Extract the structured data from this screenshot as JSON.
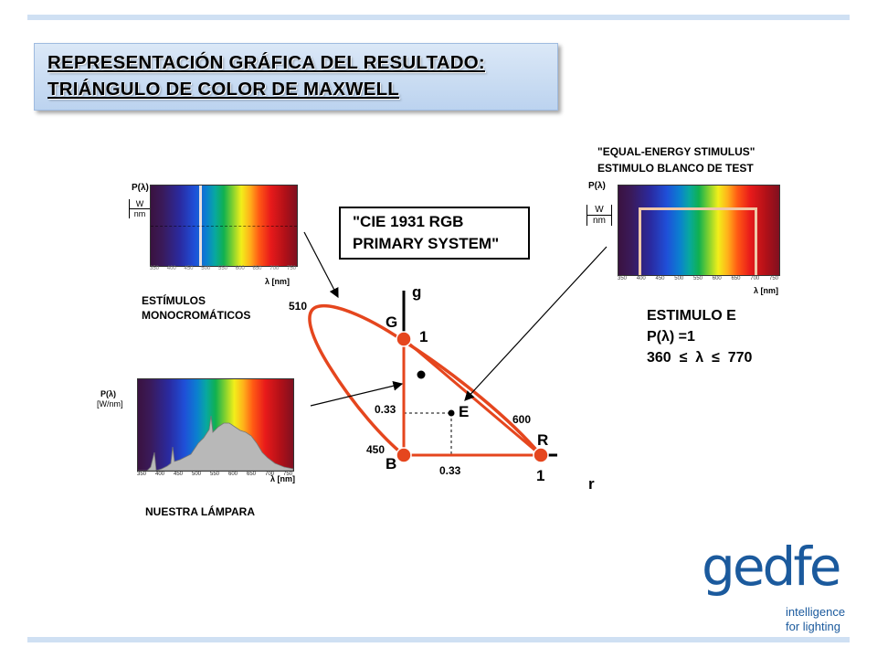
{
  "title": {
    "line1": "REPRESENTACIÓN GRÁFICA DEL RESULTADO:",
    "line2": "TRIÁNGULO DE COLOR DE MAXWELL"
  },
  "callout": {
    "line1": "\"CIE 1931 RGB",
    "line2": "PRIMARY SYSTEM\""
  },
  "monochromatic": {
    "caption_line1": "ESTÍMULOS",
    "caption_line2": "MONOCROMÁTICOS",
    "y_label": "P(λ)",
    "unit_num": "W",
    "unit_den": "nm",
    "x_label": "λ [nm]",
    "ticks": [
      "350",
      "400",
      "450",
      "500",
      "550",
      "600",
      "650",
      "700",
      "750"
    ]
  },
  "equal_energy": {
    "header_line1": "\"EQUAL-ENERGY STIMULUS\"",
    "header_line2": "ESTIMULO BLANCO DE TEST",
    "y_label": "P(λ)",
    "unit_num": "W",
    "unit_den": "nm",
    "x_label": "λ [nm]",
    "ticks": [
      "350",
      "400",
      "450",
      "500",
      "550",
      "600",
      "650",
      "700",
      "750"
    ],
    "stimulus_title": "ESTIMULO E",
    "stimulus_eq": "P(λ) =1",
    "stimulus_range": "360  ≤  λ  ≤  770"
  },
  "lamp": {
    "caption": "NUESTRA LÁMPARA",
    "y_label": "P(λ)",
    "y_unit": "[W/nm]",
    "x_label": "λ [nm]",
    "ticks": [
      "350",
      "400",
      "450",
      "500",
      "550",
      "600",
      "650",
      "700",
      "750"
    ]
  },
  "triangle": {
    "axis_g": "g",
    "axis_r": "r",
    "point_G": "G",
    "point_B": "B",
    "point_R": "R",
    "point_E": "E",
    "g_one": "1",
    "r_one": "1",
    "g_033": "0.33",
    "r_033": "0.33",
    "wl_510": "510",
    "wl_450": "450",
    "wl_600": "600",
    "locus_color": "#e5461e"
  },
  "logo": {
    "brand": "gedfe",
    "tagline1": "intelligence",
    "tagline2": "for lighting",
    "color": "#1b5a9d"
  }
}
